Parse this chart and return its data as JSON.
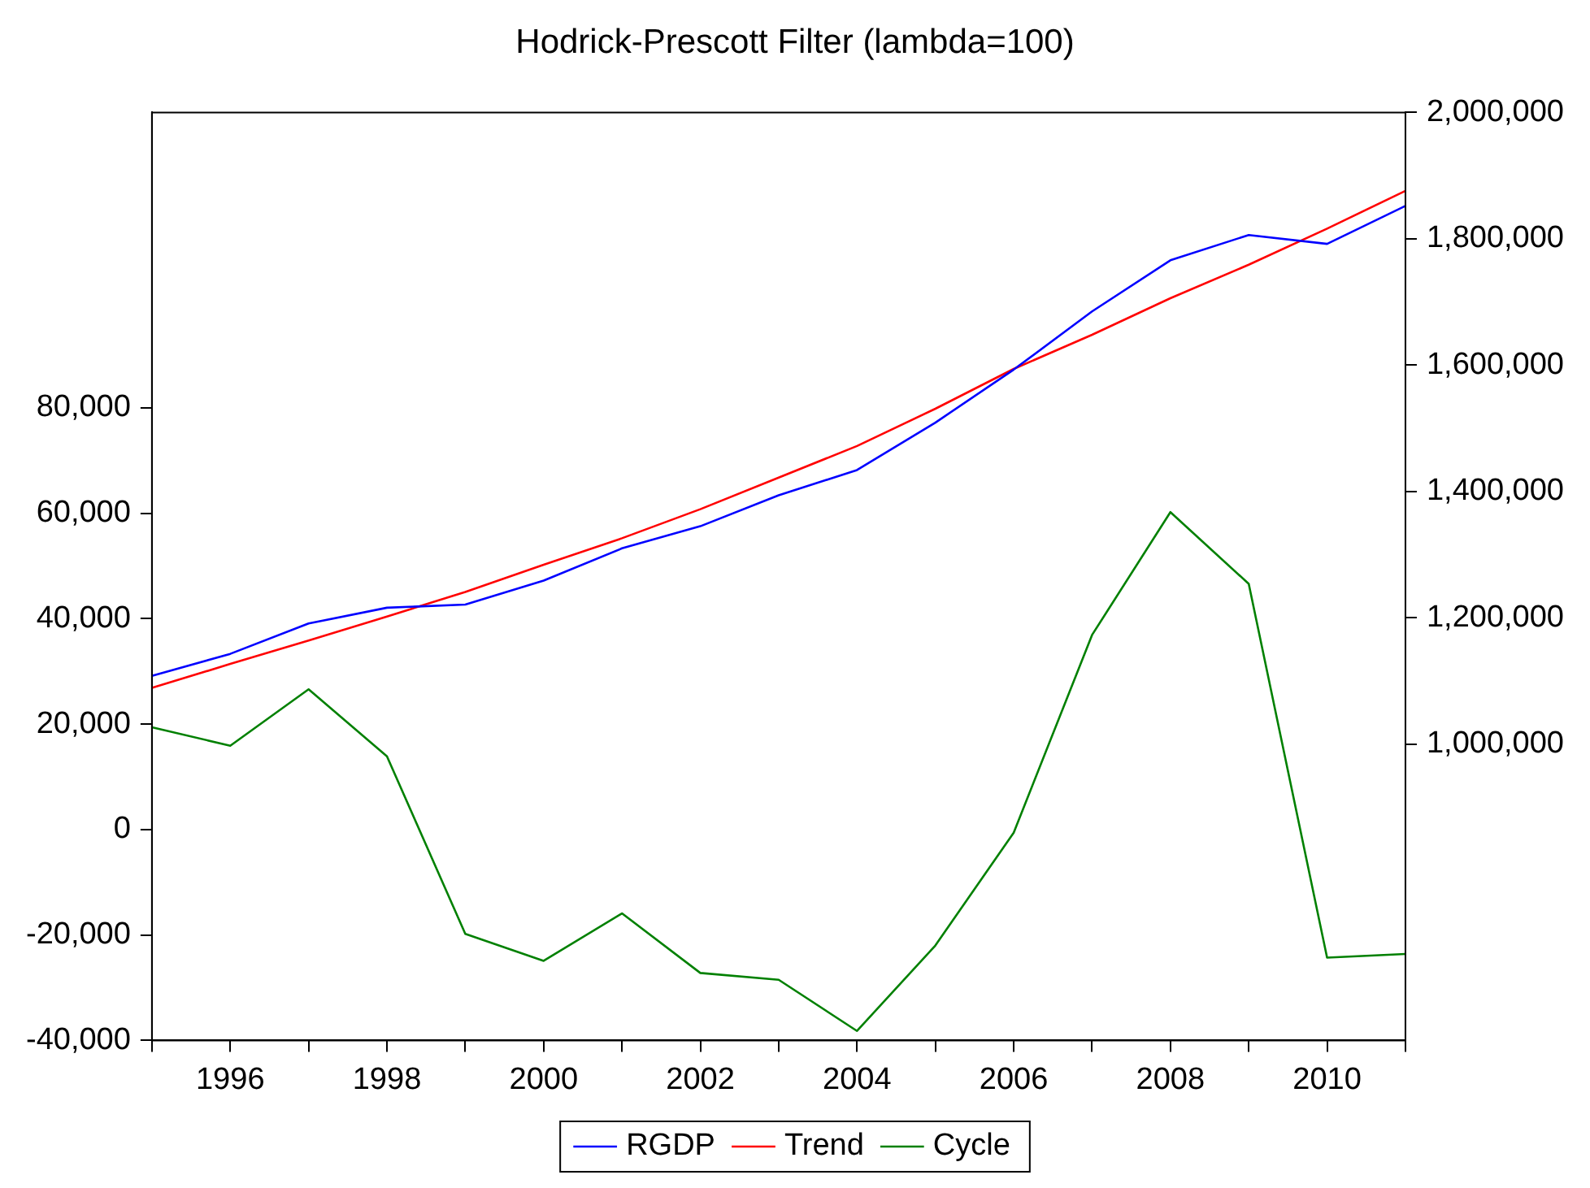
{
  "chart_data": {
    "type": "line",
    "title": "Hodrick-Prescott Filter (lambda=100)",
    "x": [
      1995,
      1996,
      1997,
      1998,
      1999,
      2000,
      2001,
      2002,
      2003,
      2004,
      2005,
      2006,
      2007,
      2008,
      2009,
      2010,
      2011
    ],
    "series": [
      {
        "name": "RGDP",
        "color": "#0000ff",
        "axis": "y2",
        "values": [
          1108000,
          1143000,
          1191000,
          1216000,
          1221000,
          1259000,
          1310000,
          1345000,
          1394000,
          1434000,
          1509000,
          1593000,
          1685000,
          1766000,
          1806000,
          1792000,
          1852000
        ]
      },
      {
        "name": "Trend",
        "color": "#ff0000",
        "axis": "y2",
        "values": [
          1089000,
          1127000,
          1164000,
          1202000,
          1241000,
          1284000,
          1326000,
          1372000,
          1422000,
          1472000,
          1531000,
          1594000,
          1648000,
          1706000,
          1759000,
          1816000,
          1876000
        ]
      },
      {
        "name": "Cycle",
        "color": "#008000",
        "values": [
          19400,
          15900,
          26600,
          13900,
          -19800,
          -24900,
          -15900,
          -27200,
          -28500,
          -38200,
          -22000,
          -600,
          36900,
          60200,
          46600,
          -24300,
          -23600
        ]
      }
    ],
    "xlim": [
      1995,
      2011
    ],
    "xticks": [
      {
        "value": 1995,
        "label": null
      },
      1996,
      {
        "value": 1997,
        "label": null
      },
      1998,
      {
        "value": 1999,
        "label": null
      },
      2000,
      {
        "value": 2001,
        "label": null
      },
      2002,
      {
        "value": 2003,
        "label": null
      },
      2004,
      {
        "value": 2005,
        "label": null
      },
      2006,
      {
        "value": 2007,
        "label": null
      },
      2008,
      {
        "value": 2009,
        "label": null
      },
      2010,
      {
        "value": 2011,
        "label": null
      }
    ],
    "ylim": [
      -40000,
      136000
    ],
    "yticks": [
      {
        "value": -40000,
        "label": "-40,000"
      },
      {
        "value": -20000,
        "label": "-20,000"
      },
      0,
      {
        "value": 20000,
        "label": "20,000"
      },
      {
        "value": 40000,
        "label": "40,000"
      },
      {
        "value": 60000,
        "label": "60,000"
      },
      {
        "value": 80000,
        "label": "80,000"
      }
    ],
    "y2lim": [
      531000,
      2000000
    ],
    "y2ticks": [
      {
        "value": 1000000,
        "label": "1,000,000"
      },
      {
        "value": 1200000,
        "label": "1,200,000"
      },
      {
        "value": 1400000,
        "label": "1,400,000"
      },
      {
        "value": 1600000,
        "label": "1,600,000"
      },
      {
        "value": 1800000,
        "label": "1,800,000"
      },
      {
        "value": 2000000,
        "label": "2,000,000"
      }
    ],
    "grid": false,
    "legend": "bottom",
    "marker": "none",
    "line_style": "solid"
  }
}
